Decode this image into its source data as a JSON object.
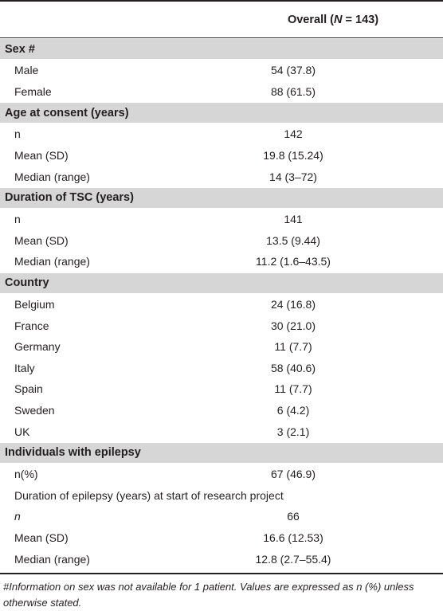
{
  "header": {
    "overall_prefix": "Overall (",
    "overall_n": "N",
    "overall_suffix": " = 143)"
  },
  "sections": [
    {
      "title": "Sex #",
      "rows": [
        {
          "label": "Male",
          "value": "54 (37.8)"
        },
        {
          "label": "Female",
          "value": "88 (61.5)"
        }
      ]
    },
    {
      "title": "Age at consent (years)",
      "rows": [
        {
          "label": "n",
          "value": "142"
        },
        {
          "label": "Mean (SD)",
          "value": "19.8 (15.24)"
        },
        {
          "label": "Median (range)",
          "value": "14 (3–72)"
        }
      ]
    },
    {
      "title": "Duration of TSC (years)",
      "rows": [
        {
          "label": "n",
          "value": "141"
        },
        {
          "label": "Mean (SD)",
          "value": "13.5 (9.44)"
        },
        {
          "label": "Median (range)",
          "value": "11.2 (1.6–43.5)"
        }
      ]
    },
    {
      "title": "Country",
      "rows": [
        {
          "label": "Belgium",
          "value": "24 (16.8)"
        },
        {
          "label": "France",
          "value": "30 (21.0)"
        },
        {
          "label": "Germany",
          "value": "11 (7.7)"
        },
        {
          "label": "Italy",
          "value": "58 (40.6)"
        },
        {
          "label": "Spain",
          "value": "11 (7.7)"
        },
        {
          "label": "Sweden",
          "value": "6 (4.2)"
        },
        {
          "label": "UK",
          "value": "3 (2.1)"
        }
      ]
    },
    {
      "title": "Individuals with epilepsy",
      "rows": [
        {
          "label": "n(%)",
          "value": "67 (46.9)"
        },
        {
          "label": "Duration of epilepsy (years) at start of research project",
          "value": ""
        },
        {
          "label": "n",
          "value": "66"
        },
        {
          "label": "Mean (SD)",
          "value": "16.6 (12.53)"
        },
        {
          "label": "Median (range)",
          "value": "12.8 (2.7–55.4)"
        }
      ]
    }
  ],
  "footnote": "#Information on sex was not available for 1 patient. Values are expressed as n (%) unless otherwise stated."
}
